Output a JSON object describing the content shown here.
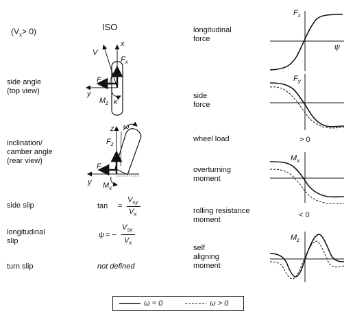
{
  "header": {
    "condition": "(V",
    "condition_sub": "x",
    "condition_rest": "> 0)",
    "standard": "ISO"
  },
  "rows": {
    "side_angle": {
      "line1": "side angle",
      "line2": "(top view)"
    },
    "camber": {
      "line1": "inclination/",
      "line2": "camber angle",
      "line3": "(rear view)"
    },
    "side_slip": {
      "label": "side slip",
      "formula_prefix": "tan",
      "formula_eq": "=",
      "num": "V",
      "num_sub": "sy",
      "den": "V",
      "den_sub": "x"
    },
    "long_slip": {
      "line1": "longitudinal",
      "line2": "slip",
      "lhs": "ψ",
      "formula_eq": "= −",
      "num": "V",
      "num_sub": "sx",
      "den": "V",
      "den_sub": "x"
    },
    "turn_slip": {
      "label": "turn slip",
      "value": "not defined"
    }
  },
  "forces": {
    "longitudinal": {
      "line1": "longitudinal",
      "line2": "force",
      "symbol": "F",
      "sub": "x",
      "x_symbol": "ψ"
    },
    "side": {
      "line1": "side",
      "line2": "force",
      "symbol": "F",
      "sub": "y"
    },
    "wheel_load": {
      "label": "wheel load",
      "value": "> 0"
    },
    "overturning": {
      "line1": "overturning",
      "line2": "moment",
      "symbol": "M",
      "sub": "x"
    },
    "rolling": {
      "line1": "rolling resistance",
      "line2": "moment",
      "value": "< 0"
    },
    "aligning": {
      "line1": "self",
      "line2": "aligning",
      "line3": "moment",
      "symbol": "M",
      "sub": "z"
    }
  },
  "figure_labels": {
    "top_view": {
      "V": "V",
      "x": "x",
      "Fx": "F",
      "Fx_sub": "x",
      "Fy": "F",
      "Fy_sub": "y",
      "y": "y",
      "Mz": "M",
      "Mz_sub": "z",
      "kappa": "κ"
    },
    "rear_view": {
      "omega": "ω",
      "z": "z",
      "Fz": "F",
      "Fz_sub": "z",
      "Fy": "F",
      "Fy_sub": "y",
      "y": "y",
      "Mx": "M",
      "Mx_sub": "x"
    }
  },
  "legend": {
    "solid": "ω = 0",
    "dashed": "ω > 0"
  }
}
